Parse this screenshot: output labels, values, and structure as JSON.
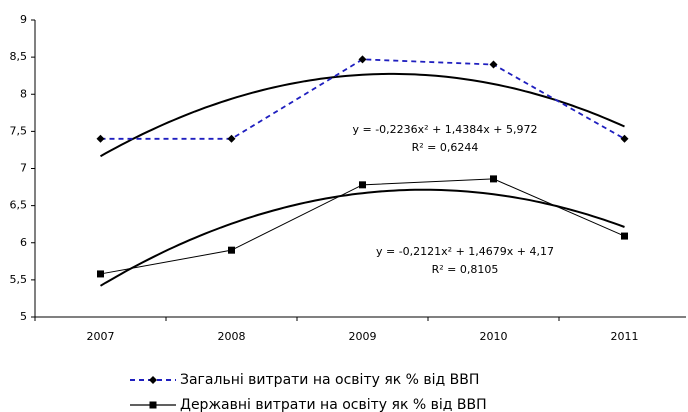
{
  "chart_data": {
    "type": "line",
    "categories": [
      "2007",
      "2008",
      "2009",
      "2010",
      "2011"
    ],
    "series": [
      {
        "name": "Загальні витрати на освіту як % від ВВП",
        "color": "#1f1fbf",
        "values": [
          7.4,
          7.4,
          8.47,
          8.4,
          7.4
        ]
      },
      {
        "name": "Державні витрати на освіту як % від ВВП",
        "color": "#000000",
        "values": [
          5.58,
          5.9,
          6.78,
          6.86,
          6.09
        ]
      }
    ],
    "ylim": [
      5,
      9
    ],
    "yticks": [
      5,
      {
        "value": 5.5,
        "label": "5,5"
      },
      6,
      {
        "value": 6.5,
        "label": "6,5"
      },
      7,
      {
        "value": 7.5,
        "label": "7,5"
      },
      8,
      {
        "value": 8.5,
        "label": "8,5"
      },
      9
    ],
    "annotations": [
      "y = -0,2236x² + 1,4384x + 5,972",
      "R² = 0,6244",
      "y = -0,2121x² + 1,4679x + 4,17",
      "R² = 0,8105"
    ],
    "trendline": "polynomial",
    "legend": "bottom"
  }
}
